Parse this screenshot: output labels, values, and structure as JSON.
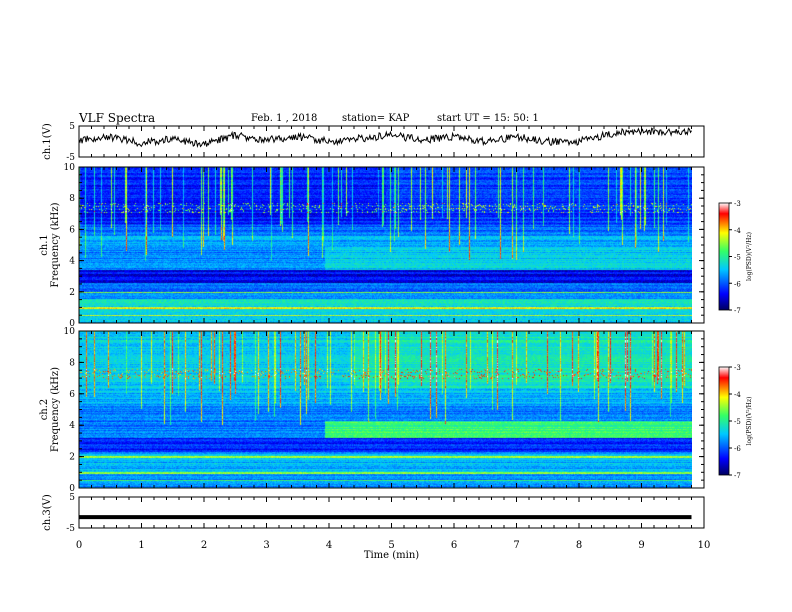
{
  "header": {
    "title": "VLF Spectra",
    "date": "Feb. 1 , 2018",
    "station": "station= KAP",
    "start": "start UT = 15: 50: 1"
  },
  "chart_data": [
    {
      "type": "line",
      "name": "ch1-waveform",
      "ylabel": "ch.1(V)",
      "ylim": [
        -5,
        5
      ],
      "yticks": [
        "5",
        "-5"
      ],
      "description_values": {
        "x": [
          0,
          0.5,
          1,
          1.5,
          2,
          2.5,
          3,
          3.5,
          4,
          4.5,
          5,
          5.5,
          6,
          6.5,
          7,
          7.5,
          8,
          8.5,
          9,
          9.5,
          9.8
        ],
        "y": [
          0.5,
          1.5,
          -0.5,
          1.0,
          -1.0,
          2.0,
          0.5,
          1.5,
          0.0,
          1.0,
          2.0,
          0.5,
          1.5,
          0.0,
          1.5,
          0.0,
          0.0,
          2.5,
          3.5,
          3.0,
          3.5
        ]
      }
    },
    {
      "type": "heatmap",
      "name": "ch1-spectrogram",
      "ylabel": "ch.1",
      "ylabel2": "Frequency (kHz)",
      "ylim": [
        0,
        10
      ],
      "yticks": [
        "0",
        "2",
        "4",
        "6",
        "8",
        "10"
      ],
      "colorbar": {
        "label": "log(PSD)(V²/Hz)",
        "range": [
          -7,
          -3
        ],
        "ticks": [
          "-3",
          "-4",
          "-5",
          "-6",
          "-7"
        ]
      }
    },
    {
      "type": "heatmap",
      "name": "ch2-spectrogram",
      "ylabel": "ch.2",
      "ylabel2": "Frequency (kHz)",
      "ylim": [
        0,
        10
      ],
      "yticks": [
        "0",
        "2",
        "4",
        "6",
        "8",
        "10"
      ],
      "colorbar": {
        "label": "log(PSD)(V²/Hz)",
        "range": [
          -7,
          -3
        ],
        "ticks": [
          "-3",
          "-4",
          "-5",
          "-6",
          "-7"
        ]
      }
    },
    {
      "type": "line",
      "name": "ch3-waveform",
      "ylabel": "ch.3(V)",
      "ylim": [
        -5,
        5
      ],
      "yticks": [
        "5",
        "-5"
      ],
      "description_values": {
        "x": [
          0,
          9.8
        ],
        "y": [
          -1.5,
          -1.5
        ]
      }
    }
  ],
  "xaxis": {
    "label": "Time (min)",
    "ticks": [
      "0",
      "1",
      "2",
      "3",
      "4",
      "5",
      "6",
      "7",
      "8",
      "9",
      "10"
    ],
    "xlim": [
      0,
      10
    ]
  },
  "colors": {
    "deep": "#00007a",
    "blue": "#0000ff",
    "cyan": "#00c8ff",
    "green": "#33ff66",
    "yellow": "#ffff00",
    "red": "#ff0000"
  }
}
